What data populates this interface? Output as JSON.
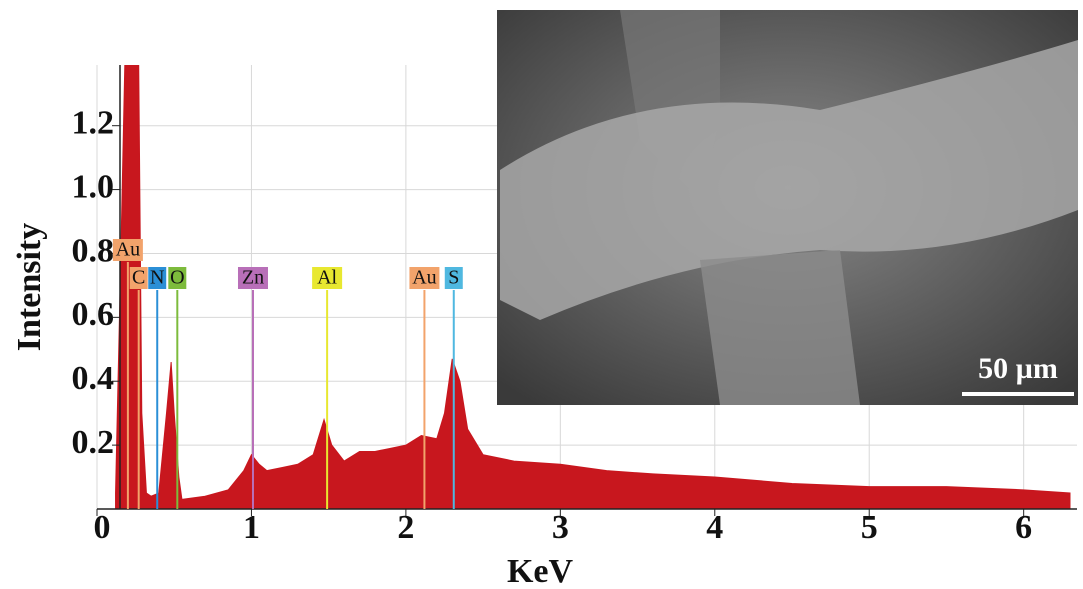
{
  "chart_data": {
    "type": "area",
    "x_label": "KeV",
    "y_label": "Intensity",
    "x": [
      0.12,
      0.15,
      0.18,
      0.27,
      0.29,
      0.32,
      0.35,
      0.4,
      0.45,
      0.48,
      0.5,
      0.53,
      0.55,
      0.7,
      0.85,
      0.95,
      1.0,
      1.05,
      1.1,
      1.2,
      1.3,
      1.4,
      1.47,
      1.52,
      1.6,
      1.7,
      1.8,
      1.9,
      2.0,
      2.1,
      2.2,
      2.25,
      2.3,
      2.35,
      2.4,
      2.5,
      2.7,
      3.0,
      3.3,
      3.6,
      4.0,
      4.5,
      5.0,
      5.5,
      6.0,
      6.3
    ],
    "values": [
      0.05,
      0.7,
      1.39,
      1.39,
      0.3,
      0.05,
      0.04,
      0.05,
      0.3,
      0.46,
      0.3,
      0.1,
      0.03,
      0.04,
      0.06,
      0.12,
      0.17,
      0.14,
      0.12,
      0.13,
      0.14,
      0.17,
      0.28,
      0.2,
      0.15,
      0.18,
      0.18,
      0.19,
      0.2,
      0.23,
      0.22,
      0.3,
      0.47,
      0.4,
      0.25,
      0.17,
      0.15,
      0.14,
      0.12,
      0.11,
      0.1,
      0.08,
      0.07,
      0.07,
      0.06,
      0.05
    ],
    "color": "#c8171e",
    "xlim": [
      0,
      6.3
    ],
    "ylim": [
      0,
      1.39
    ],
    "xticks": [
      0,
      1,
      2,
      3,
      4,
      5,
      6
    ],
    "yticks": [
      0.2,
      0.4,
      0.6,
      0.8,
      {
        "value": 1,
        "label": "1.0"
      },
      1.2
    ],
    "grid": true,
    "markers": [
      {
        "label": "Au",
        "energy": 0.2,
        "color": "#f2a36b"
      },
      {
        "label": "C",
        "energy": 0.27,
        "color": "#f2a36b"
      },
      {
        "label": "N",
        "energy": 0.39,
        "color": "#2b8fd6"
      },
      {
        "label": "O",
        "energy": 0.52,
        "color": "#7dbb3c"
      },
      {
        "label": "Zn",
        "energy": 1.01,
        "color": "#b86fb8"
      },
      {
        "label": "Al",
        "energy": 1.49,
        "color": "#e8e830"
      },
      {
        "label": "Au",
        "energy": 2.12,
        "color": "#f2a36b"
      },
      {
        "label": "S",
        "energy": 2.31,
        "color": "#4fb8e0"
      }
    ]
  },
  "inset": {
    "scale_bar": "50 µm"
  }
}
